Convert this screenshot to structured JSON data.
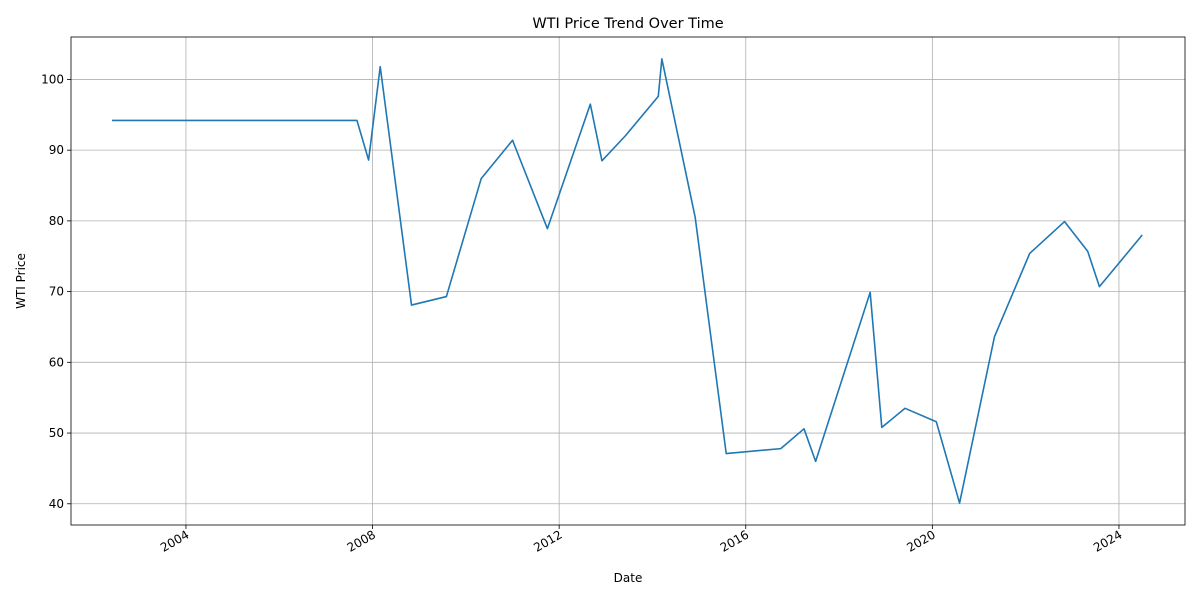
{
  "chart_data": {
    "type": "line",
    "title": "WTI Price Trend Over Time",
    "xlabel": "Date",
    "ylabel": "WTI Price",
    "grid": true,
    "xlim": [
      "2001-07-15",
      "2025-06-01"
    ],
    "ylim": [
      37,
      106
    ],
    "xticks": [
      {
        "label": "2004",
        "date": "2004-01-01"
      },
      {
        "label": "2008",
        "date": "2008-01-01"
      },
      {
        "label": "2012",
        "date": "2012-01-01"
      },
      {
        "label": "2016",
        "date": "2016-01-01"
      },
      {
        "label": "2020",
        "date": "2020-01-01"
      },
      {
        "label": "2024",
        "date": "2024-01-01"
      }
    ],
    "yticks": [
      40,
      50,
      60,
      70,
      80,
      90,
      100
    ],
    "series": [
      {
        "name": "",
        "color": "#1f77b4",
        "points": [
          {
            "x": "2002-06-01",
            "y": 94.2
          },
          {
            "x": "2007-09-01",
            "y": 94.2
          },
          {
            "x": "2007-12-01",
            "y": 88.6
          },
          {
            "x": "2008-03-01",
            "y": 101.8
          },
          {
            "x": "2008-11-01",
            "y": 68.1
          },
          {
            "x": "2009-08-01",
            "y": 69.3
          },
          {
            "x": "2010-05-01",
            "y": 86.0
          },
          {
            "x": "2011-01-01",
            "y": 91.4
          },
          {
            "x": "2011-10-01",
            "y": 78.9
          },
          {
            "x": "2012-09-01",
            "y": 96.5
          },
          {
            "x": "2012-12-01",
            "y": 88.5
          },
          {
            "x": "2013-06-01",
            "y": 92.0
          },
          {
            "x": "2014-02-15",
            "y": 97.6
          },
          {
            "x": "2014-03-15",
            "y": 102.9
          },
          {
            "x": "2014-12-01",
            "y": 80.5
          },
          {
            "x": "2015-08-01",
            "y": 47.1
          },
          {
            "x": "2016-10-01",
            "y": 47.8
          },
          {
            "x": "2017-04-01",
            "y": 50.6
          },
          {
            "x": "2017-07-01",
            "y": 46.0
          },
          {
            "x": "2018-09-01",
            "y": 69.9
          },
          {
            "x": "2018-12-01",
            "y": 50.8
          },
          {
            "x": "2019-06-01",
            "y": 53.5
          },
          {
            "x": "2020-02-01",
            "y": 51.6
          },
          {
            "x": "2020-08-01",
            "y": 40.1
          },
          {
            "x": "2021-05-01",
            "y": 63.6
          },
          {
            "x": "2022-02-01",
            "y": 75.4
          },
          {
            "x": "2022-11-01",
            "y": 79.9
          },
          {
            "x": "2023-05-01",
            "y": 75.7
          },
          {
            "x": "2023-08-01",
            "y": 70.7
          },
          {
            "x": "2024-07-01",
            "y": 78.0
          }
        ]
      }
    ]
  }
}
